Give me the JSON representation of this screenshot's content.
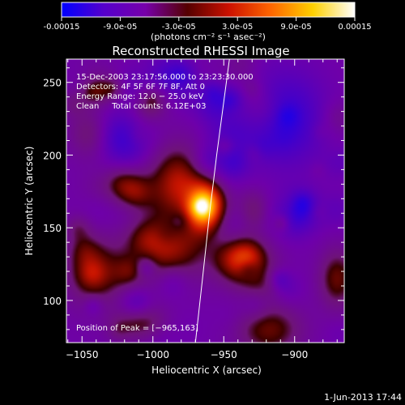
{
  "colorbar": {
    "tick_labels": [
      "-0.00015",
      "-9.0e-05",
      "-3.0e-05",
      "3.0e-05",
      "9.0e-05",
      "0.00015"
    ],
    "tick_values": [
      -0.00015,
      -9e-05,
      -3e-05,
      3e-05,
      9e-05,
      0.00015
    ],
    "range": [
      -0.00015,
      0.00015
    ],
    "units_label": "(photons cm⁻² s⁻¹ asec⁻²)",
    "colors": [
      "#0000ff",
      "#5500cc",
      "#7700aa",
      "#550000",
      "#cc1100",
      "#ff6600",
      "#ffd000",
      "#ffffff"
    ]
  },
  "chart_data": {
    "type": "heatmap",
    "title": "Reconstructed RHESSI Image",
    "xlabel": "Heliocentric X (arcsec)",
    "ylabel": "Heliocentric Y (arcsec)",
    "xlim": [
      -1061,
      -865
    ],
    "ylim": [
      71,
      266
    ],
    "x_ticks": [
      {
        "value": -1050,
        "label": "−1050"
      },
      {
        "value": -1000,
        "label": "−1000"
      },
      {
        "value": -950,
        "label": "−950"
      },
      {
        "value": -900,
        "label": "−900"
      }
    ],
    "y_ticks": [
      {
        "value": 100,
        "label": "100"
      },
      {
        "value": 150,
        "label": "150"
      },
      {
        "value": 200,
        "label": "200"
      },
      {
        "value": 250,
        "label": "250"
      }
    ],
    "info_lines": [
      "15-Dec-2003 23:17:56.000 to 23:23:30.000",
      "Detectors: 4F 5F 6F 7F 8F, Att 0",
      "Energy Range: 12.0 − 25.0 keV",
      "Clean     Total counts: 6.12E+03"
    ],
    "peak_label": "Position of Peak = [−965,163]",
    "peak": {
      "x": -965,
      "y": 163
    },
    "limb_line": [
      [
        -970,
        71
      ],
      [
        -965,
        115
      ],
      [
        -960,
        160
      ],
      [
        -955,
        200
      ],
      [
        -946,
        266
      ]
    ],
    "sources": [
      {
        "x": -964,
        "y": 164,
        "sx": 9,
        "sy": 11,
        "amp": 1.0
      },
      {
        "x": -982,
        "y": 180,
        "sx": 14,
        "sy": 18,
        "amp": 0.55
      },
      {
        "x": -990,
        "y": 135,
        "sx": 18,
        "sy": 16,
        "amp": 0.5
      },
      {
        "x": -1040,
        "y": 118,
        "sx": 14,
        "sy": 16,
        "amp": 0.45
      },
      {
        "x": -1015,
        "y": 175,
        "sx": 10,
        "sy": 10,
        "amp": 0.35
      },
      {
        "x": -935,
        "y": 125,
        "sx": 14,
        "sy": 12,
        "amp": 0.45
      },
      {
        "x": -918,
        "y": 80,
        "sx": 16,
        "sy": 12,
        "amp": 0.4
      },
      {
        "x": -870,
        "y": 115,
        "sx": 9,
        "sy": 14,
        "amp": 0.4
      },
      {
        "x": -1010,
        "y": 85,
        "sx": 12,
        "sy": 8,
        "amp": 0.35
      },
      {
        "x": -1045,
        "y": 215,
        "sx": 10,
        "sy": 12,
        "amp": 0.25
      },
      {
        "x": -1035,
        "y": 245,
        "sx": 8,
        "sy": 8,
        "amp": 0.2
      },
      {
        "x": -1020,
        "y": 215,
        "sx": 12,
        "sy": 14,
        "amp": -0.45
      },
      {
        "x": -905,
        "y": 225,
        "sx": 18,
        "sy": 22,
        "amp": -0.4
      },
      {
        "x": -900,
        "y": 160,
        "sx": 10,
        "sy": 10,
        "amp": -0.5
      },
      {
        "x": -945,
        "y": 210,
        "sx": 12,
        "sy": 14,
        "amp": -0.25
      },
      {
        "x": -990,
        "y": 255,
        "sx": 10,
        "sy": 10,
        "amp": -0.25
      }
    ]
  },
  "footer_timestamp": "1-Jun-2013 17:44"
}
